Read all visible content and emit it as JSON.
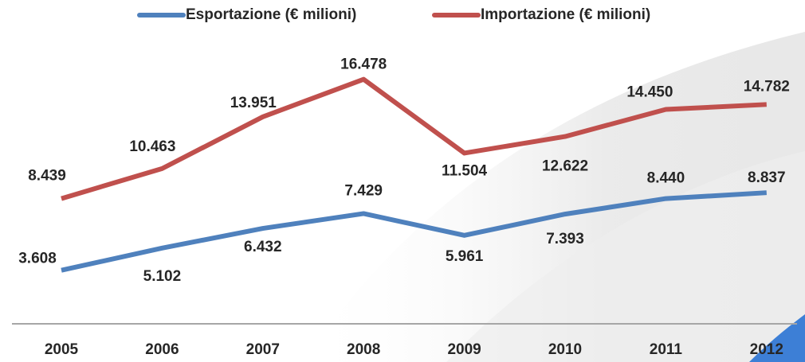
{
  "chart_data": {
    "type": "line",
    "categories": [
      "2005",
      "2006",
      "2007",
      "2008",
      "2009",
      "2010",
      "2011",
      "2012"
    ],
    "series": [
      {
        "name": "Esportazione (€ milioni)",
        "color": "#4f81bd",
        "values": [
          3608,
          5102,
          6432,
          7429,
          5961,
          7393,
          8440,
          8837
        ],
        "value_labels": [
          "3.608",
          "5.102",
          "6.432",
          "7.429",
          "5.961",
          "7.393",
          "8.440",
          "8.837"
        ]
      },
      {
        "name": "Importazione (€ milioni)",
        "color": "#c0504d",
        "values": [
          8439,
          10463,
          13951,
          16478,
          11504,
          12622,
          14450,
          14782
        ],
        "value_labels": [
          "8.439",
          "10.463",
          "13.951",
          "16.478",
          "11.504",
          "12.622",
          "14.450",
          "14.782"
        ]
      }
    ],
    "ylim": [
      0,
      18000
    ],
    "legend": "top"
  }
}
